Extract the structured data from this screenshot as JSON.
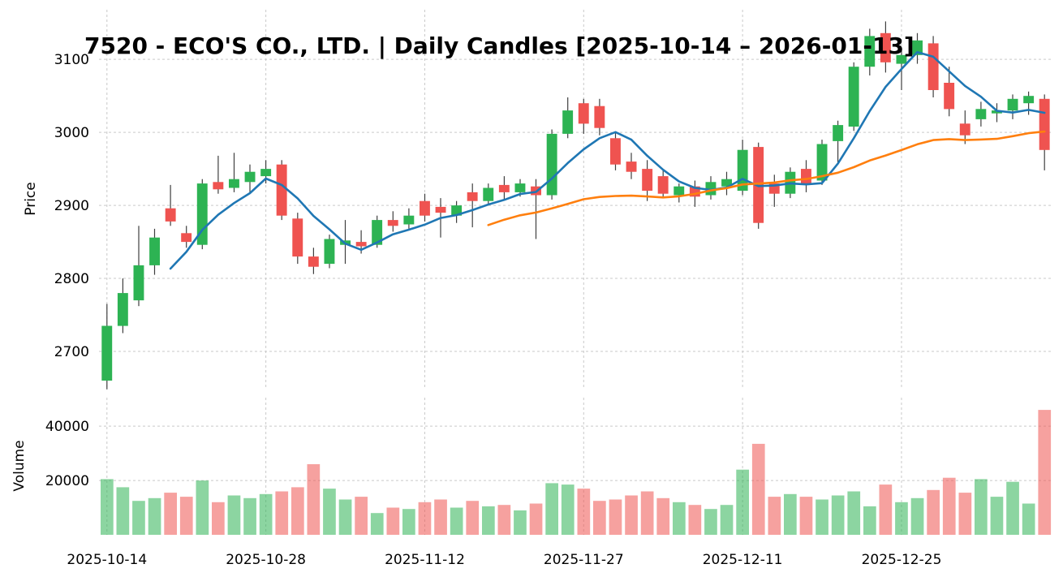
{
  "title": "7520 - ECO'S CO., LTD. | Daily Candles [2025-10-14 – 2026-01-13]",
  "axes": {
    "price_label": "Price",
    "volume_label": "Volume",
    "price_ticks": [
      2700,
      2800,
      2900,
      3000,
      3100
    ],
    "volume_ticks": [
      20000,
      40000
    ],
    "x_tick_labels": [
      "2025-10-14",
      "2025-10-28",
      "2025-11-12",
      "2025-11-27",
      "2025-12-11",
      "2025-12-25"
    ],
    "x_tick_indices": [
      0,
      10,
      20,
      30,
      40,
      50
    ]
  },
  "colors": {
    "up": "#2db353",
    "down": "#ef5350",
    "wick": "#3f3f3f",
    "ma_fast": "#1f77b4",
    "ma_slow": "#ff7f0e",
    "grid": "#c9c9c9",
    "text": "#000000",
    "background": "#ffffff"
  },
  "chart_data": {
    "type": "candlestick",
    "title": "7520 - ECO'S CO., LTD. | Daily Candles [2025-10-14 – 2026-01-13]",
    "symbol": "7520",
    "company": "ECO'S CO., LTD.",
    "period_start": "2025-10-14",
    "period_end": "2026-01-13",
    "xlabel": "",
    "ylabel_price": "Price",
    "ylabel_volume": "Volume",
    "grid": true,
    "legend": false,
    "price_axis_range": [
      2650,
      3168
    ],
    "volume_axis_range": [
      0,
      50500
    ],
    "overlays": [
      {
        "name": "MA5",
        "window": 5,
        "color_key": "ma_fast"
      },
      {
        "name": "MA25",
        "window": 25,
        "color_key": "ma_slow"
      }
    ],
    "dates": [
      "2025-10-14",
      "2025-10-15",
      "2025-10-16",
      "2025-10-17",
      "2025-10-20",
      "2025-10-21",
      "2025-10-22",
      "2025-10-23",
      "2025-10-24",
      "2025-10-27",
      "2025-10-28",
      "2025-10-29",
      "2025-10-30",
      "2025-10-31",
      "2025-11-04",
      "2025-11-05",
      "2025-11-06",
      "2025-11-07",
      "2025-11-10",
      "2025-11-11",
      "2025-11-12",
      "2025-11-13",
      "2025-11-14",
      "2025-11-17",
      "2025-11-18",
      "2025-11-19",
      "2025-11-20",
      "2025-11-21",
      "2025-11-25",
      "2025-11-26",
      "2025-11-27",
      "2025-11-28",
      "2025-12-01",
      "2025-12-02",
      "2025-12-03",
      "2025-12-04",
      "2025-12-05",
      "2025-12-08",
      "2025-12-09",
      "2025-12-10",
      "2025-12-11",
      "2025-12-12",
      "2025-12-15",
      "2025-12-16",
      "2025-12-17",
      "2025-12-18",
      "2025-12-19",
      "2025-12-22",
      "2025-12-23",
      "2025-12-24",
      "2025-12-25",
      "2025-12-26",
      "2025-12-29",
      "2025-12-30",
      "2026-01-05",
      "2026-01-06",
      "2026-01-07",
      "2026-01-08",
      "2026-01-09",
      "2026-01-13"
    ],
    "ohlc": [
      [
        2660,
        2765,
        2648,
        2735
      ],
      [
        2735,
        2800,
        2725,
        2780
      ],
      [
        2770,
        2872,
        2762,
        2818
      ],
      [
        2818,
        2868,
        2805,
        2856
      ],
      [
        2896,
        2928,
        2872,
        2878
      ],
      [
        2862,
        2872,
        2842,
        2850
      ],
      [
        2846,
        2936,
        2840,
        2930
      ],
      [
        2932,
        2968,
        2916,
        2922
      ],
      [
        2924,
        2972,
        2918,
        2936
      ],
      [
        2932,
        2956,
        2916,
        2946
      ],
      [
        2940,
        2962,
        2930,
        2950
      ],
      [
        2956,
        2962,
        2880,
        2886
      ],
      [
        2882,
        2890,
        2820,
        2830
      ],
      [
        2830,
        2842,
        2806,
        2816
      ],
      [
        2820,
        2860,
        2814,
        2854
      ],
      [
        2846,
        2880,
        2820,
        2852
      ],
      [
        2850,
        2866,
        2834,
        2844
      ],
      [
        2846,
        2886,
        2842,
        2880
      ],
      [
        2880,
        2892,
        2864,
        2872
      ],
      [
        2874,
        2896,
        2868,
        2886
      ],
      [
        2906,
        2916,
        2878,
        2886
      ],
      [
        2898,
        2910,
        2856,
        2890
      ],
      [
        2886,
        2906,
        2876,
        2900
      ],
      [
        2918,
        2930,
        2870,
        2906
      ],
      [
        2906,
        2930,
        2900,
        2924
      ],
      [
        2928,
        2940,
        2908,
        2918
      ],
      [
        2918,
        2936,
        2912,
        2930
      ],
      [
        2926,
        2936,
        2854,
        2914
      ],
      [
        2914,
        3004,
        2908,
        2998
      ],
      [
        2998,
        3048,
        2992,
        3030
      ],
      [
        3040,
        3046,
        2998,
        3012
      ],
      [
        3036,
        3046,
        2996,
        3006
      ],
      [
        2992,
        3000,
        2948,
        2956
      ],
      [
        2960,
        2972,
        2936,
        2946
      ],
      [
        2950,
        2962,
        2906,
        2920
      ],
      [
        2940,
        2950,
        2910,
        2916
      ],
      [
        2914,
        2930,
        2904,
        2926
      ],
      [
        2926,
        2934,
        2898,
        2912
      ],
      [
        2914,
        2940,
        2908,
        2932
      ],
      [
        2926,
        2946,
        2914,
        2936
      ],
      [
        2920,
        2990,
        2914,
        2976
      ],
      [
        2980,
        2986,
        2868,
        2876
      ],
      [
        2930,
        2942,
        2898,
        2916
      ],
      [
        2916,
        2952,
        2910,
        2946
      ],
      [
        2950,
        2962,
        2918,
        2930
      ],
      [
        2934,
        2990,
        2928,
        2984
      ],
      [
        2988,
        3016,
        2958,
        3010
      ],
      [
        3008,
        3096,
        3002,
        3090
      ],
      [
        3090,
        3142,
        3078,
        3132
      ],
      [
        3136,
        3152,
        3082,
        3096
      ],
      [
        3094,
        3116,
        3058,
        3106
      ],
      [
        3106,
        3136,
        3094,
        3126
      ],
      [
        3122,
        3132,
        3048,
        3058
      ],
      [
        3068,
        3090,
        3022,
        3032
      ],
      [
        3012,
        3030,
        2984,
        2996
      ],
      [
        3018,
        3042,
        3008,
        3032
      ],
      [
        3026,
        3040,
        3014,
        3030
      ],
      [
        3030,
        3052,
        3018,
        3046
      ],
      [
        3040,
        3056,
        3024,
        3050
      ],
      [
        3046,
        3052,
        2948,
        2976
      ]
    ],
    "volume": [
      20500,
      17500,
      12500,
      13500,
      15500,
      14000,
      20000,
      12000,
      14500,
      13500,
      15000,
      16000,
      17500,
      26000,
      17000,
      13000,
      14000,
      8000,
      10000,
      9500,
      12000,
      13000,
      10000,
      12500,
      10500,
      11000,
      9000,
      11500,
      19000,
      18500,
      17000,
      12500,
      13000,
      14500,
      16000,
      13500,
      12000,
      11000,
      9500,
      11000,
      24000,
      33500,
      14000,
      15000,
      14000,
      13000,
      14500,
      16000,
      10500,
      18500,
      12000,
      13500,
      16500,
      21000,
      15500,
      20500,
      14000,
      19500,
      11500,
      46000
    ]
  }
}
